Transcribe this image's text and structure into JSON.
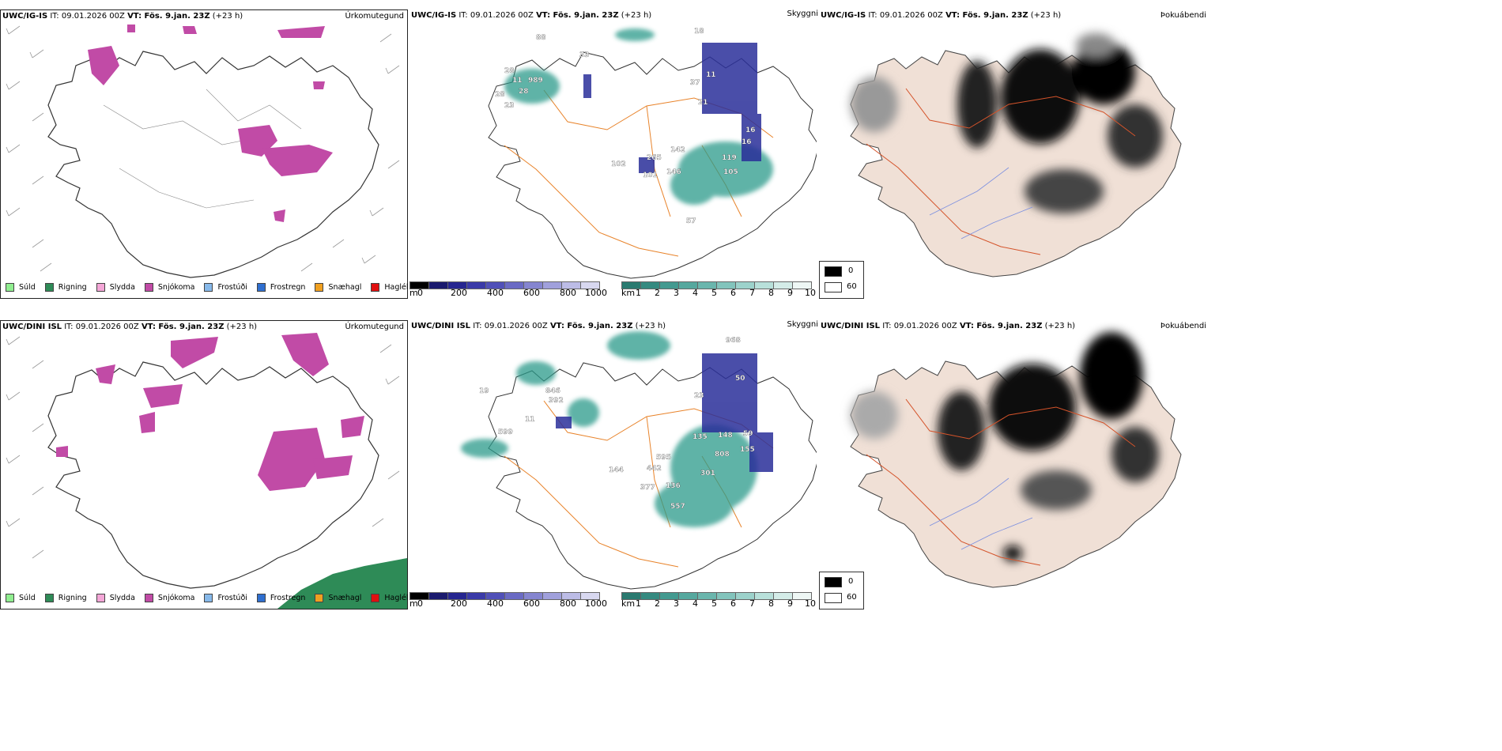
{
  "rows": [
    {
      "model": "UWC/IG-IS",
      "precip": {
        "title_model": "UWC/IG-IS",
        "it_label": "IT:",
        "it_value": "09.01.2026 00Z",
        "vt_label": "VT: Fös. 9.jan. 23Z",
        "lead": "(+23 h)",
        "product": "Úrkomutegund",
        "legend": [
          {
            "label": "Súld",
            "color": "#90ee90"
          },
          {
            "label": "Rigning",
            "color": "#2e8b57"
          },
          {
            "label": "Slydda",
            "color": "#f4a6d7"
          },
          {
            "label": "Snjókoma",
            "color": "#c14ba6"
          },
          {
            "label": "Frostúði",
            "color": "#87b9ea"
          },
          {
            "label": "Frostregn",
            "color": "#2f6fcf"
          },
          {
            "label": "Snæhagl",
            "color": "#f0a020"
          },
          {
            "label": "Haglél",
            "color": "#e01010"
          }
        ]
      },
      "cloud": {
        "title_model": "UWC/IG-IS",
        "it_label": "IT:",
        "it_value": "09.01.2026 00Z",
        "vt_label": "VT: Fös. 9.jan. 23Z",
        "lead": "(+23 h)",
        "product": "Skyggni",
        "labels": [
          "88",
          "28",
          "11",
          "989",
          "28",
          "28",
          "23",
          "33",
          "18",
          "11",
          "37",
          "21",
          "102",
          "265",
          "101",
          "146",
          "119",
          "105",
          "16",
          "16",
          "57",
          "142"
        ],
        "scale_m_label": "m",
        "scale_m_ticks": [
          "0",
          "200",
          "400",
          "600",
          "800",
          "1000"
        ],
        "scale_km_label": "km",
        "scale_km_ticks": [
          "1",
          "2",
          "3",
          "4",
          "5",
          "6",
          "7",
          "8",
          "9",
          "10"
        ]
      },
      "cover": {
        "title_model": "UWC/IG-IS",
        "it_label": "IT:",
        "it_value": "09.01.2026 00Z",
        "vt_label": "VT: Fös. 9.jan. 23Z",
        "lead": "(+23 h)",
        "product": "Þokuábendi",
        "legend": [
          {
            "label": "0",
            "color": "#000000"
          },
          {
            "label": "60",
            "color": "#ffffff"
          }
        ]
      }
    },
    {
      "model": "UWC/DINI ISL",
      "precip": {
        "title_model": "UWC/DINI ISL",
        "it_label": "IT:",
        "it_value": "09.01.2026 00Z",
        "vt_label": "VT: Fös. 9.jan. 23Z",
        "lead": "(+23 h)",
        "product": "Úrkomutegund",
        "legend": [
          {
            "label": "Súld",
            "color": "#90ee90"
          },
          {
            "label": "Rigning",
            "color": "#2e8b57"
          },
          {
            "label": "Slydda",
            "color": "#f4a6d7"
          },
          {
            "label": "Snjókoma",
            "color": "#c14ba6"
          },
          {
            "label": "Frostúði",
            "color": "#87b9ea"
          },
          {
            "label": "Frostregn",
            "color": "#2f6fcf"
          },
          {
            "label": "Snæhagl",
            "color": "#f0a020"
          },
          {
            "label": "Haglél",
            "color": "#e01010"
          }
        ]
      },
      "cloud": {
        "title_model": "UWC/DINI ISL",
        "it_label": "IT:",
        "it_value": "09.01.2026 00Z",
        "vt_label": "VT: Fös. 9.jan. 23Z",
        "lead": "(+23 h)",
        "product": "Skyggni",
        "labels": [
          "968",
          "50",
          "846",
          "392",
          "11",
          "599",
          "19",
          "23",
          "135",
          "148",
          "59",
          "595",
          "442",
          "808",
          "155",
          "301",
          "377",
          "136",
          "557",
          "144"
        ],
        "scale_m_label": "m",
        "scale_m_ticks": [
          "0",
          "200",
          "400",
          "600",
          "800",
          "1000"
        ],
        "scale_km_label": "km",
        "scale_km_ticks": [
          "1",
          "2",
          "3",
          "4",
          "5",
          "6",
          "7",
          "8",
          "9",
          "10"
        ]
      },
      "cover": {
        "title_model": "UWC/DINI ISL",
        "it_label": "IT:",
        "it_value": "09.01.2026 00Z",
        "vt_label": "VT: Fös. 9.jan. 23Z",
        "lead": "(+23 h)",
        "product": "Þokuábendi",
        "legend": [
          {
            "label": "0",
            "color": "#000000"
          },
          {
            "label": "60",
            "color": "#ffffff"
          }
        ]
      }
    }
  ]
}
